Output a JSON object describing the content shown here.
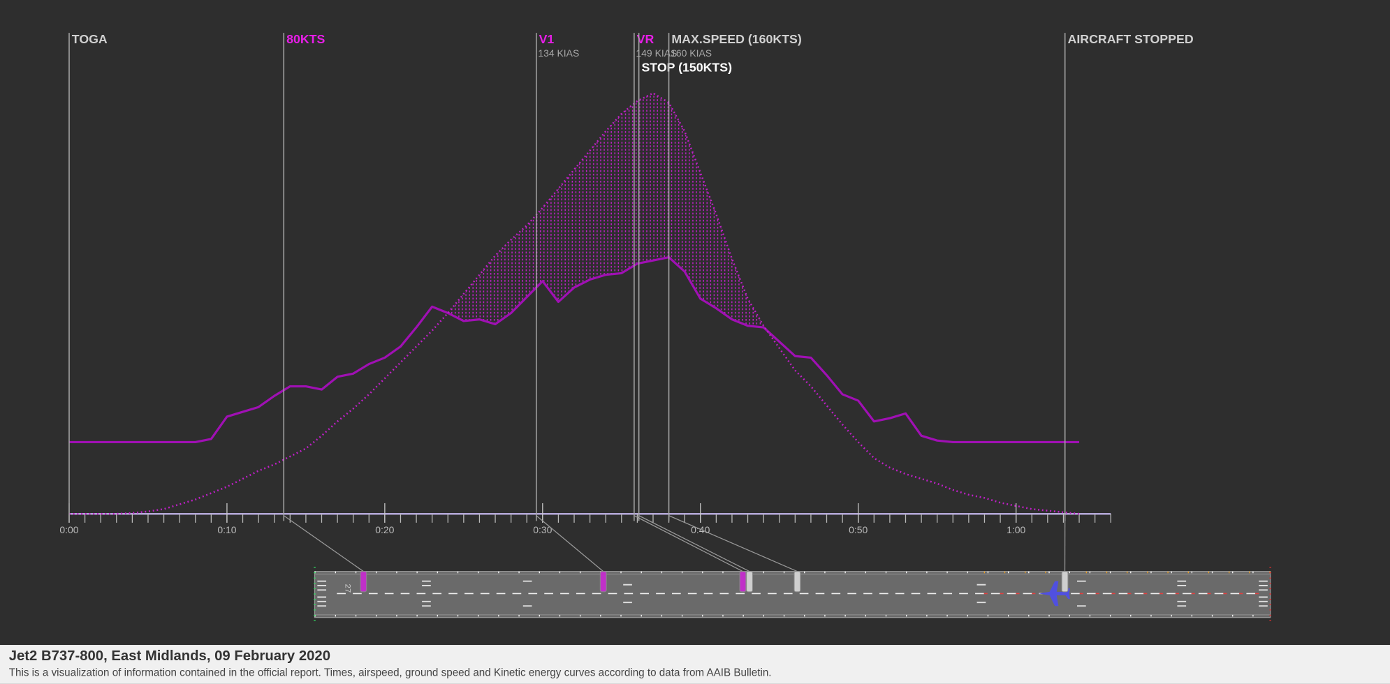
{
  "chart_data": {
    "type": "line",
    "title": "Jet2 B737-800, East Midlands, 09 February 2020",
    "subtitle": "This is a visualization of information contained in the official report. Times, airspeed, ground speed and Kinetic energy curves according to data from AAIB Bulletin.",
    "x": [
      0,
      1,
      2,
      3,
      4,
      5,
      6,
      7,
      8,
      9,
      10,
      11,
      12,
      13,
      14,
      15,
      16,
      17,
      18,
      19,
      20,
      21,
      22,
      23,
      24,
      25,
      26,
      27,
      28,
      29,
      30,
      31,
      32,
      33,
      34,
      35,
      36,
      37,
      38,
      39,
      40,
      41,
      42,
      43,
      44,
      45,
      46,
      47,
      48,
      49,
      50,
      51,
      52,
      53,
      54,
      55,
      56,
      57,
      58,
      59,
      60,
      61,
      62,
      63,
      64
    ],
    "series": [
      {
        "color": "#a010b4",
        "style": "solid",
        "values": [
          45,
          45,
          45,
          45,
          45,
          45,
          45,
          45,
          45,
          47,
          61,
          64,
          67,
          74,
          80,
          80,
          78,
          86,
          88,
          94,
          98,
          105,
          117,
          130,
          126,
          121,
          122,
          119,
          126,
          136,
          146,
          133,
          142,
          147,
          150,
          151,
          157,
          159,
          161,
          152,
          135,
          129,
          122,
          118,
          117,
          108,
          99,
          98,
          87,
          75,
          71,
          58,
          60,
          63,
          49,
          46,
          45,
          45,
          45,
          45,
          45,
          45,
          45,
          45,
          45
        ]
      },
      {
        "color": "#c020c8",
        "style": "dotted",
        "values": [
          0,
          0,
          0,
          0,
          0.5,
          1.5,
          3,
          6,
          9,
          13,
          17,
          22,
          27,
          31,
          36,
          41,
          49,
          58,
          66,
          75,
          85,
          95,
          105,
          115,
          126,
          138,
          150,
          162,
          172,
          181,
          192,
          204,
          216,
          228,
          240,
          251,
          259,
          264,
          258,
          240,
          214,
          188,
          160,
          135,
          118,
          104,
          90,
          80,
          68,
          56,
          45,
          35,
          29,
          25,
          22,
          19,
          15,
          12,
          10,
          7,
          5,
          3,
          2,
          1,
          0
        ]
      }
    ],
    "xlim": [
      0,
      66
    ],
    "ylim": [
      0,
      264
    ],
    "xminor_step": 1,
    "xticks": [
      {
        "value": 0,
        "label": "0:00"
      },
      {
        "value": 10,
        "label": "0:10"
      },
      {
        "value": 20,
        "label": "0:20"
      },
      {
        "value": 30,
        "label": "0:30"
      },
      {
        "value": 40,
        "label": "0:40"
      },
      {
        "value": 50,
        "label": "0:50"
      },
      {
        "value": 60,
        "label": "1:00"
      }
    ],
    "events": [
      {
        "label": "TOGA",
        "time": 0,
        "color": "#d0d0d0"
      },
      {
        "label": "80KTS",
        "time": 13.6,
        "color": "#e81ee8",
        "runway_pos": 5.1
      },
      {
        "label": "V1",
        "sub": "134 KIAS",
        "time": 29.6,
        "color": "#e81ee8",
        "runway_pos": 30.2
      },
      {
        "label": "VR",
        "sub": "149 KIAS",
        "time": 35.8,
        "color": "#e81ee8",
        "runway_pos": 44.8
      },
      {
        "label": "STOP (150KTS)",
        "time": 36.1,
        "color": "#ffffff",
        "runway_pos": 45.5
      },
      {
        "label": "MAX.SPEED (160KTS)",
        "sub": "160 KIAS",
        "time": 38.0,
        "color": "#d0d0d0",
        "runway_pos": 50.5
      },
      {
        "label": "AIRCRAFT STOPPED",
        "time": 63.1,
        "color": "#d0d0d0",
        "runway_pos": 78.5
      }
    ],
    "runway_label": "27"
  }
}
